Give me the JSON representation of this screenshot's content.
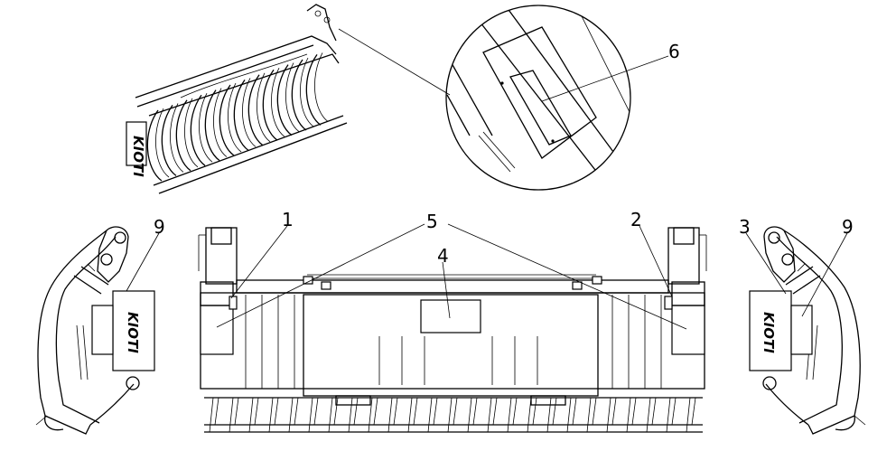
{
  "callouts": {
    "c1": "1",
    "c2": "2",
    "c3": "3",
    "c4": "4",
    "c5": "5",
    "c6": "6",
    "c9_left": "9",
    "c9_right": "9"
  },
  "logo_text": "KIOTI",
  "colors": {
    "line": "#000000",
    "background": "#ffffff"
  }
}
